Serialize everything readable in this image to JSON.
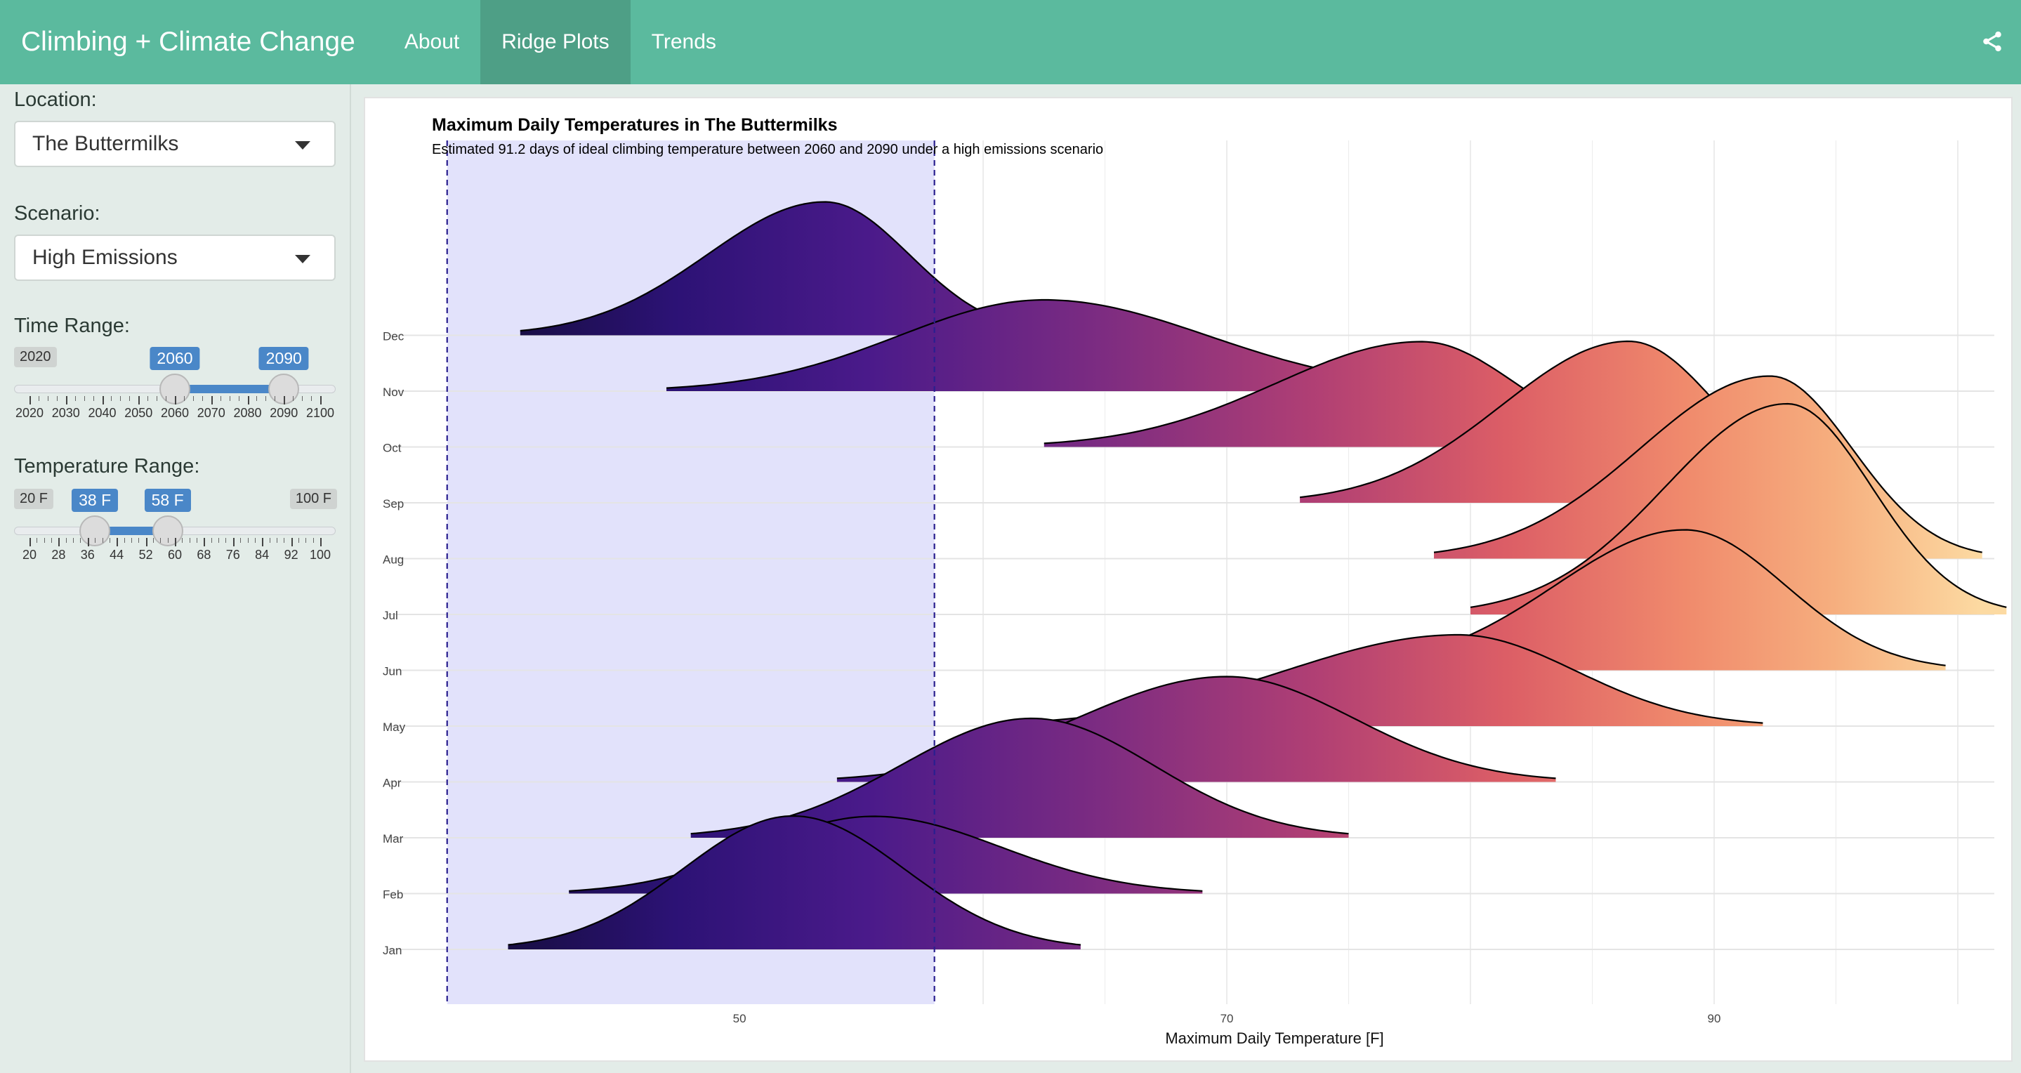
{
  "app": {
    "title": "Climbing + Climate Change"
  },
  "nav": {
    "tabs": [
      {
        "label": "About"
      },
      {
        "label": "Ridge Plots"
      },
      {
        "label": "Trends"
      }
    ]
  },
  "sidebar": {
    "location": {
      "label": "Location:",
      "value": "The Buttermilks"
    },
    "scenario": {
      "label": "Scenario:",
      "value": "High Emissions"
    },
    "time_range": {
      "label": "Time Range:",
      "min_label": "2020",
      "from_label": "2060",
      "to_label": "2090",
      "min": 2020,
      "max": 2100,
      "from": 2060,
      "to": 2090,
      "ticks": [
        "2020",
        "2030",
        "2040",
        "2050",
        "2060",
        "2070",
        "2080",
        "2090",
        "2100"
      ]
    },
    "temp_range": {
      "label": "Temperature Range:",
      "min_label": "20 F",
      "from_label": "38 F",
      "to_label": "58 F",
      "max_label": "100 F",
      "min": 20,
      "max": 100,
      "from": 38,
      "to": 58,
      "ticks": [
        "20",
        "28",
        "36",
        "44",
        "52",
        "60",
        "68",
        "76",
        "84",
        "92",
        "100"
      ]
    }
  },
  "chart_data": {
    "type": "ridgeline",
    "title": "Maximum Daily Temperatures in The Buttermilks",
    "subtitle": "Estimated 91.2 days of ideal climbing temperature between 2060 and 2090 under a high emissions scenario",
    "xlabel": "Maximum Daily Temperature [F]",
    "xlim": [
      35.5,
      101.5
    ],
    "x_ticks": [
      50,
      70,
      90
    ],
    "highlight_range": [
      38,
      58
    ],
    "categories": [
      "Jan",
      "Feb",
      "Mar",
      "Apr",
      "May",
      "Jun",
      "Jul",
      "Aug",
      "Sep",
      "Oct",
      "Nov",
      "Dec"
    ],
    "color_low": "#1a0f4a",
    "color_high": "#fbd59e",
    "series": [
      {
        "name": "Jan",
        "peak": 52.2,
        "range": [
          40.5,
          64.0
        ],
        "height": 1.9
      },
      {
        "name": "Feb",
        "peak": 55.5,
        "range": [
          43.0,
          69.0
        ],
        "height": 1.1
      },
      {
        "name": "Mar",
        "peak": 62.0,
        "range": [
          48.0,
          75.0
        ],
        "height": 1.7
      },
      {
        "name": "Apr",
        "peak": 70.0,
        "range": [
          54.0,
          83.5
        ],
        "height": 1.5
      },
      {
        "name": "May",
        "peak": 79.5,
        "range": [
          61.0,
          92.0
        ],
        "height": 1.3
      },
      {
        "name": "Jun",
        "peak": 88.8,
        "range": [
          75.0,
          99.5
        ],
        "height": 2.0
      },
      {
        "name": "Jul",
        "peak": 93.0,
        "range": [
          80.0,
          102.0
        ],
        "height": 3.0
      },
      {
        "name": "Aug",
        "peak": 92.3,
        "range": [
          78.5,
          101.0
        ],
        "height": 2.6
      },
      {
        "name": "Sep",
        "peak": 86.5,
        "range": [
          73.0,
          96.0
        ],
        "height": 2.3
      },
      {
        "name": "Oct",
        "peak": 78.0,
        "range": [
          62.5,
          88.0
        ],
        "height": 1.5
      },
      {
        "name": "Nov",
        "peak": 62.5,
        "range": [
          47.0,
          80.0
        ],
        "height": 1.3
      },
      {
        "name": "Dec",
        "peak": 53.5,
        "range": [
          41.0,
          62.5
        ],
        "height": 1.9
      }
    ]
  }
}
